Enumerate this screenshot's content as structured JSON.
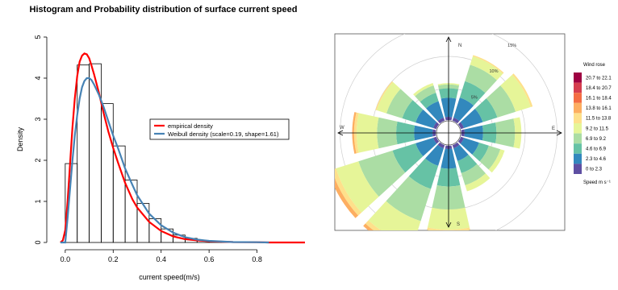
{
  "chart_data": [
    {
      "type": "bar",
      "title": "Histogram and Probability distribution of surface current speed",
      "xlabel": "current speed(m/s)",
      "ylabel": "Density",
      "xlim": [
        -0.05,
        1.0
      ],
      "ylim": [
        0,
        5
      ],
      "xticks": [
        "0.0",
        "0.2",
        "0.4",
        "0.6",
        "0.8"
      ],
      "yticks": [
        "0",
        "1",
        "2",
        "3",
        "4",
        "5"
      ],
      "bin_width": 0.05,
      "bins": [
        {
          "x0": 0.0,
          "x1": 0.05,
          "density": 1.92
        },
        {
          "x0": 0.05,
          "x1": 0.1,
          "density": 4.32
        },
        {
          "x0": 0.1,
          "x1": 0.15,
          "density": 4.35
        },
        {
          "x0": 0.15,
          "x1": 0.2,
          "density": 3.38
        },
        {
          "x0": 0.2,
          "x1": 0.25,
          "density": 2.35
        },
        {
          "x0": 0.25,
          "x1": 0.3,
          "density": 1.52
        },
        {
          "x0": 0.3,
          "x1": 0.35,
          "density": 0.95
        },
        {
          "x0": 0.35,
          "x1": 0.4,
          "density": 0.58
        },
        {
          "x0": 0.4,
          "x1": 0.45,
          "density": 0.33
        },
        {
          "x0": 0.45,
          "x1": 0.5,
          "density": 0.18
        },
        {
          "x0": 0.5,
          "x1": 0.55,
          "density": 0.1
        },
        {
          "x0": 0.55,
          "x1": 0.6,
          "density": 0.05
        },
        {
          "x0": 0.6,
          "x1": 0.65,
          "density": 0.03
        },
        {
          "x0": 0.65,
          "x1": 0.7,
          "density": 0.01
        }
      ],
      "series": [
        {
          "name": "empirical density",
          "color": "#ff0000",
          "x": [
            -0.02,
            -0.01,
            0.0,
            0.01,
            0.02,
            0.03,
            0.04,
            0.05,
            0.06,
            0.07,
            0.08,
            0.09,
            0.1,
            0.11,
            0.12,
            0.14,
            0.16,
            0.18,
            0.2,
            0.22,
            0.25,
            0.28,
            0.3,
            0.35,
            0.4,
            0.45,
            0.5,
            0.55,
            0.6,
            0.7,
            0.8,
            0.85,
            1.0
          ],
          "y": [
            0,
            0.05,
            0.3,
            1.0,
            1.9,
            2.8,
            3.5,
            4.05,
            4.4,
            4.55,
            4.6,
            4.58,
            4.48,
            4.3,
            4.1,
            3.65,
            3.15,
            2.7,
            2.3,
            1.95,
            1.45,
            1.05,
            0.85,
            0.5,
            0.28,
            0.15,
            0.08,
            0.05,
            0.03,
            0.01,
            0.005,
            0,
            0
          ]
        },
        {
          "name": "Weibull density (scale=0.19, shape=1.61)",
          "color": "#4682b4",
          "x": [
            -0.02,
            -0.01,
            0.0,
            0.01,
            0.02,
            0.03,
            0.04,
            0.05,
            0.06,
            0.07,
            0.08,
            0.09,
            0.1,
            0.11,
            0.12,
            0.14,
            0.16,
            0.18,
            0.2,
            0.22,
            0.25,
            0.28,
            0.3,
            0.35,
            0.4,
            0.45,
            0.5,
            0.55,
            0.6,
            0.7,
            0.8,
            0.85
          ],
          "y": [
            0,
            0,
            0,
            0.6,
            1.3,
            2.0,
            2.6,
            3.1,
            3.5,
            3.78,
            3.93,
            4.0,
            4.0,
            3.95,
            3.85,
            3.6,
            3.3,
            2.95,
            2.6,
            2.3,
            1.8,
            1.4,
            1.15,
            0.7,
            0.42,
            0.24,
            0.13,
            0.07,
            0.04,
            0.01,
            0.005,
            0
          ]
        }
      ],
      "legend": "center-right"
    },
    {
      "type": "wind-rose",
      "legend_title": "Wind rose",
      "speed_label": "Speed m s⁻¹",
      "compass": [
        "N",
        "E",
        "S",
        "W"
      ],
      "ring_labels": [
        "5%",
        "10%",
        "15%"
      ],
      "ring_percent": [
        5,
        10,
        15
      ],
      "bins": [
        {
          "label": "0 to 2.3",
          "color": "#5e4fa2"
        },
        {
          "label": "2.3 to 4.6",
          "color": "#3288bd"
        },
        {
          "label": "4.6 to 6.9",
          "color": "#66c2a5"
        },
        {
          "label": "6.9 to 9.2",
          "color": "#abdda4"
        },
        {
          "label": "9.2 to 11.5",
          "color": "#e6f598"
        },
        {
          "label": "11.5 to 13.8",
          "color": "#fee08b"
        },
        {
          "label": "13.8 to 16.1",
          "color": "#fdae61"
        },
        {
          "label": "16.1 to 18.4",
          "color": "#f46d43"
        },
        {
          "label": "18.4 to 20.7",
          "color": "#d53e4f"
        },
        {
          "label": "20.7 to 22.1",
          "color": "#9e0142"
        }
      ],
      "directions_deg": [
        0,
        30,
        60,
        90,
        120,
        150,
        180,
        210,
        240,
        270,
        300,
        330
      ],
      "cumulative_percent_by_direction": [
        [
          0.5,
          3.5,
          5.0,
          5.6,
          5.8,
          5.8,
          5.8,
          5.8,
          5.8,
          5.8
        ],
        [
          0.5,
          3.8,
          6.5,
          9.2,
          10.6,
          10.8,
          10.8,
          10.8,
          10.8,
          10.8
        ],
        [
          0.5,
          3.6,
          6.0,
          9.0,
          11.5,
          11.8,
          11.8,
          11.8,
          11.8,
          11.8
        ],
        [
          0.5,
          3.4,
          5.5,
          8.4,
          9.4,
          9.4,
          9.4,
          9.4,
          9.4,
          9.4
        ],
        [
          0.5,
          3.0,
          4.6,
          6.5,
          7.2,
          7.2,
          7.2,
          7.2,
          7.2,
          7.2
        ],
        [
          0.5,
          2.6,
          4.6,
          6.6,
          7.6,
          7.6,
          7.6,
          7.6,
          7.6,
          7.6
        ],
        [
          0.5,
          3.6,
          6.4,
          10.0,
          13.2,
          13.6,
          13.6,
          13.6,
          13.6,
          13.6
        ],
        [
          0.5,
          3.4,
          7.2,
          12.5,
          16.6,
          17.3,
          17.8,
          17.8,
          17.8,
          17.8
        ],
        [
          0.5,
          3.4,
          7.2,
          12.8,
          16.5,
          17.2,
          17.8,
          17.8,
          17.8,
          17.8
        ],
        [
          0.5,
          3.4,
          6.2,
          9.2,
          12.4,
          12.8,
          13.1,
          13.1,
          13.1,
          13.1
        ],
        [
          0.5,
          3.4,
          5.6,
          8.2,
          9.8,
          10.0,
          10.0,
          10.0,
          10.0,
          10.0
        ],
        [
          0.5,
          3.2,
          4.6,
          5.8,
          6.2,
          6.2,
          6.2,
          6.2,
          6.2,
          6.2
        ]
      ]
    }
  ]
}
